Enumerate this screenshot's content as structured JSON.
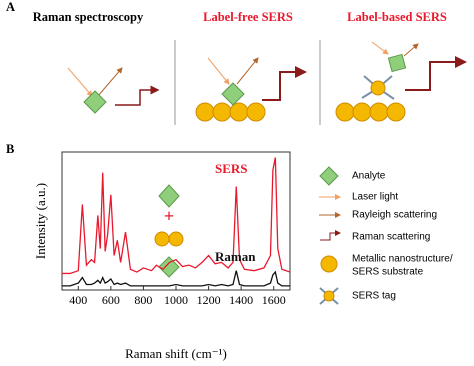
{
  "panel_a": {
    "label": "A",
    "titles": [
      "Raman spectroscopy",
      "Label-free SERS",
      "Label-based SERS"
    ]
  },
  "panel_b": {
    "label": "B"
  },
  "chart_data": {
    "type": "line",
    "x_label": "Raman shift (cm⁻¹)",
    "y_label": "Intensity (a.u.)",
    "x": [
      300,
      350,
      400,
      425,
      450,
      480,
      500,
      520,
      535,
      550,
      565,
      580,
      600,
      620,
      640,
      660,
      690,
      720,
      760,
      800,
      850,
      880,
      920,
      960,
      1000,
      1040,
      1080,
      1120,
      1160,
      1200,
      1240,
      1280,
      1320,
      1350,
      1370,
      1390,
      1420,
      1480,
      1540,
      1580,
      1595,
      1610,
      1625,
      1650,
      1700
    ],
    "series": [
      {
        "name": "SERS",
        "color": "#e8192c",
        "values": [
          12,
          12,
          14,
          62,
          18,
          22,
          20,
          54,
          30,
          85,
          28,
          40,
          69,
          25,
          36,
          20,
          42,
          15,
          13,
          16,
          14,
          18,
          15,
          20,
          22,
          17,
          18,
          16,
          20,
          25,
          19,
          20,
          16,
          20,
          75,
          22,
          15,
          14,
          16,
          25,
          87,
          96,
          30,
          15,
          13
        ]
      },
      {
        "name": "Raman",
        "color": "#111111",
        "values": [
          3,
          3,
          5,
          9,
          4,
          4,
          5,
          7,
          5,
          9,
          5,
          6,
          8,
          4,
          5,
          4,
          5,
          3,
          3,
          3,
          3,
          3,
          3,
          3,
          4,
          3,
          3,
          3,
          3,
          4,
          3,
          4,
          3,
          4,
          14,
          4,
          3,
          3,
          3,
          5,
          11,
          13,
          5,
          3,
          3
        ]
      }
    ],
    "xlim": [
      300,
      1700
    ],
    "xticks": [
      400,
      600,
      800,
      1000,
      1200,
      1400,
      1600
    ],
    "ylim": [
      0,
      100
    ]
  },
  "legend": {
    "items": [
      "Analyte",
      "Laser light",
      "Rayleigh scattering",
      "Raman scattering",
      "Metallic nanostructure/",
      "SERS substrate",
      "SERS tag"
    ]
  }
}
